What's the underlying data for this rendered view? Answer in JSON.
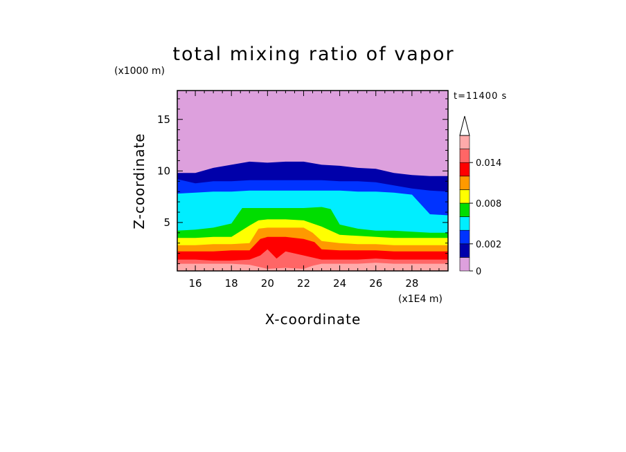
{
  "chart_data": {
    "type": "heatmap",
    "title": "total mixing ratio of vapor",
    "xlabel": "X-coordinate",
    "ylabel": "Z-coordinate",
    "x_unit": "(x1E4 m)",
    "y_unit": "(x1000 m)",
    "time_label": "t=11400 s",
    "x_range": [
      15,
      30
    ],
    "y_range": [
      0.3,
      17.8
    ],
    "x_ticks": [
      16,
      18,
      20,
      22,
      24,
      26,
      28
    ],
    "y_ticks": [
      5,
      10,
      15
    ],
    "colorbar": {
      "levels": [
        0,
        0.001,
        0.002,
        0.004,
        0.006,
        0.008,
        0.01,
        0.012,
        0.014,
        0.016
      ],
      "colors": [
        "#dda0dd",
        "#0000aa",
        "#0033ff",
        "#00eeff",
        "#00dd00",
        "#ffff00",
        "#ff9900",
        "#ff0000",
        "#ff6666",
        "#ffaaaa"
      ],
      "tick_labels": [
        "0",
        "0.002",
        "0.008",
        "0.014"
      ],
      "tick_values": [
        0,
        0.002,
        0.008,
        0.014
      ],
      "extend": "max"
    },
    "contour_layers": [
      {
        "level": 0.001,
        "color": "#0000aa",
        "top": [
          [
            15,
            9.8
          ],
          [
            16,
            9.8
          ],
          [
            17,
            10.3
          ],
          [
            18,
            10.6
          ],
          [
            19,
            10.9
          ],
          [
            20,
            10.8
          ],
          [
            21,
            10.9
          ],
          [
            22,
            10.9
          ],
          [
            23,
            10.6
          ],
          [
            24,
            10.5
          ],
          [
            25,
            10.3
          ],
          [
            26,
            10.2
          ],
          [
            27,
            9.8
          ],
          [
            28,
            9.6
          ],
          [
            29,
            9.5
          ],
          [
            30,
            9.5
          ]
        ]
      },
      {
        "level": 0.002,
        "color": "#0033ff",
        "top": [
          [
            15,
            9.2
          ],
          [
            16,
            8.8
          ],
          [
            17,
            9.0
          ],
          [
            18,
            9.0
          ],
          [
            19,
            9.1
          ],
          [
            20,
            9.1
          ],
          [
            21,
            9.1
          ],
          [
            22,
            9.1
          ],
          [
            23,
            9.1
          ],
          [
            24,
            9.0
          ],
          [
            25,
            9.0
          ],
          [
            26,
            8.9
          ],
          [
            27,
            8.6
          ],
          [
            28,
            8.3
          ],
          [
            29,
            8.1
          ],
          [
            30,
            8.0
          ]
        ]
      },
      {
        "level": 0.004,
        "color": "#00eeff",
        "top": [
          [
            15,
            7.8
          ],
          [
            16,
            7.9
          ],
          [
            17,
            8.0
          ],
          [
            18,
            8.0
          ],
          [
            19,
            8.1
          ],
          [
            20,
            8.1
          ],
          [
            21,
            8.1
          ],
          [
            22,
            8.1
          ],
          [
            23,
            8.1
          ],
          [
            24,
            8.1
          ],
          [
            25,
            8.0
          ],
          [
            26,
            8.0
          ],
          [
            27,
            7.9
          ],
          [
            28,
            7.7
          ],
          [
            29,
            5.8
          ],
          [
            30,
            5.7
          ]
        ]
      },
      {
        "level": 0.006,
        "color": "#00dd00",
        "top": [
          [
            15,
            4.2
          ],
          [
            16,
            4.3
          ],
          [
            17,
            4.5
          ],
          [
            18,
            4.9
          ],
          [
            18.6,
            6.4
          ],
          [
            19,
            6.4
          ],
          [
            20,
            6.4
          ],
          [
            21,
            6.4
          ],
          [
            22,
            6.4
          ],
          [
            23,
            6.5
          ],
          [
            23.5,
            6.3
          ],
          [
            24,
            4.8
          ],
          [
            25,
            4.4
          ],
          [
            26,
            4.2
          ],
          [
            27,
            4.2
          ],
          [
            28,
            4.1
          ],
          [
            29,
            4.0
          ],
          [
            30,
            4.0
          ]
        ]
      },
      {
        "level": 0.008,
        "color": "#ffff00",
        "top": [
          [
            15,
            3.5
          ],
          [
            16,
            3.5
          ],
          [
            17,
            3.6
          ],
          [
            18,
            3.6
          ],
          [
            19,
            4.7
          ],
          [
            19.5,
            5.2
          ],
          [
            20,
            5.3
          ],
          [
            21,
            5.3
          ],
          [
            22,
            5.2
          ],
          [
            23,
            4.6
          ],
          [
            24,
            3.8
          ],
          [
            25,
            3.7
          ],
          [
            26,
            3.6
          ],
          [
            27,
            3.5
          ],
          [
            28,
            3.5
          ],
          [
            29,
            3.5
          ],
          [
            30,
            3.5
          ]
        ]
      },
      {
        "level": 0.01,
        "color": "#ff9900",
        "top": [
          [
            15,
            2.8
          ],
          [
            16,
            2.8
          ],
          [
            17,
            2.9
          ],
          [
            18,
            2.9
          ],
          [
            19,
            3.0
          ],
          [
            19.5,
            4.4
          ],
          [
            20,
            4.5
          ],
          [
            21,
            4.5
          ],
          [
            22,
            4.5
          ],
          [
            22.5,
            4.0
          ],
          [
            23,
            3.2
          ],
          [
            24,
            3.0
          ],
          [
            25,
            2.9
          ],
          [
            26,
            2.9
          ],
          [
            27,
            2.8
          ],
          [
            28,
            2.8
          ],
          [
            29,
            2.8
          ],
          [
            30,
            2.8
          ]
        ]
      },
      {
        "level": 0.012,
        "color": "#ff0000",
        "top": [
          [
            15,
            2.2
          ],
          [
            16,
            2.2
          ],
          [
            17,
            2.2
          ],
          [
            18,
            2.3
          ],
          [
            19,
            2.3
          ],
          [
            19.6,
            3.4
          ],
          [
            20,
            3.6
          ],
          [
            21,
            3.6
          ],
          [
            22,
            3.4
          ],
          [
            22.6,
            3.1
          ],
          [
            23,
            2.4
          ],
          [
            24,
            2.3
          ],
          [
            25,
            2.3
          ],
          [
            26,
            2.3
          ],
          [
            27,
            2.2
          ],
          [
            28,
            2.2
          ],
          [
            29,
            2.2
          ],
          [
            30,
            2.2
          ]
        ]
      },
      {
        "level": 0.014,
        "color": "#ff6666",
        "top": [
          [
            15,
            1.4
          ],
          [
            16,
            1.4
          ],
          [
            17,
            1.3
          ],
          [
            18,
            1.3
          ],
          [
            19,
            1.4
          ],
          [
            19.6,
            1.8
          ],
          [
            20,
            2.4
          ],
          [
            20.5,
            1.5
          ],
          [
            21,
            2.2
          ],
          [
            22,
            1.8
          ],
          [
            22.5,
            1.6
          ],
          [
            23,
            1.4
          ],
          [
            24,
            1.4
          ],
          [
            25,
            1.4
          ],
          [
            26,
            1.5
          ],
          [
            27,
            1.4
          ],
          [
            28,
            1.4
          ],
          [
            29,
            1.4
          ],
          [
            30,
            1.4
          ]
        ]
      },
      {
        "level": 0.016,
        "color": "#ffaaaa",
        "top": [
          [
            15,
            1.0
          ],
          [
            16,
            1.0
          ],
          [
            17,
            1.0
          ],
          [
            18,
            1.0
          ],
          [
            19,
            0.9
          ],
          [
            19.5,
            0.7
          ],
          [
            20,
            0.5
          ],
          [
            21,
            0.6
          ],
          [
            22,
            0.5
          ],
          [
            22.5,
            0.8
          ],
          [
            23,
            1.0
          ],
          [
            24,
            1.0
          ],
          [
            25,
            1.0
          ],
          [
            26,
            1.1
          ],
          [
            27,
            1.0
          ],
          [
            28,
            1.0
          ],
          [
            29,
            1.0
          ],
          [
            30,
            1.0
          ]
        ]
      }
    ]
  }
}
